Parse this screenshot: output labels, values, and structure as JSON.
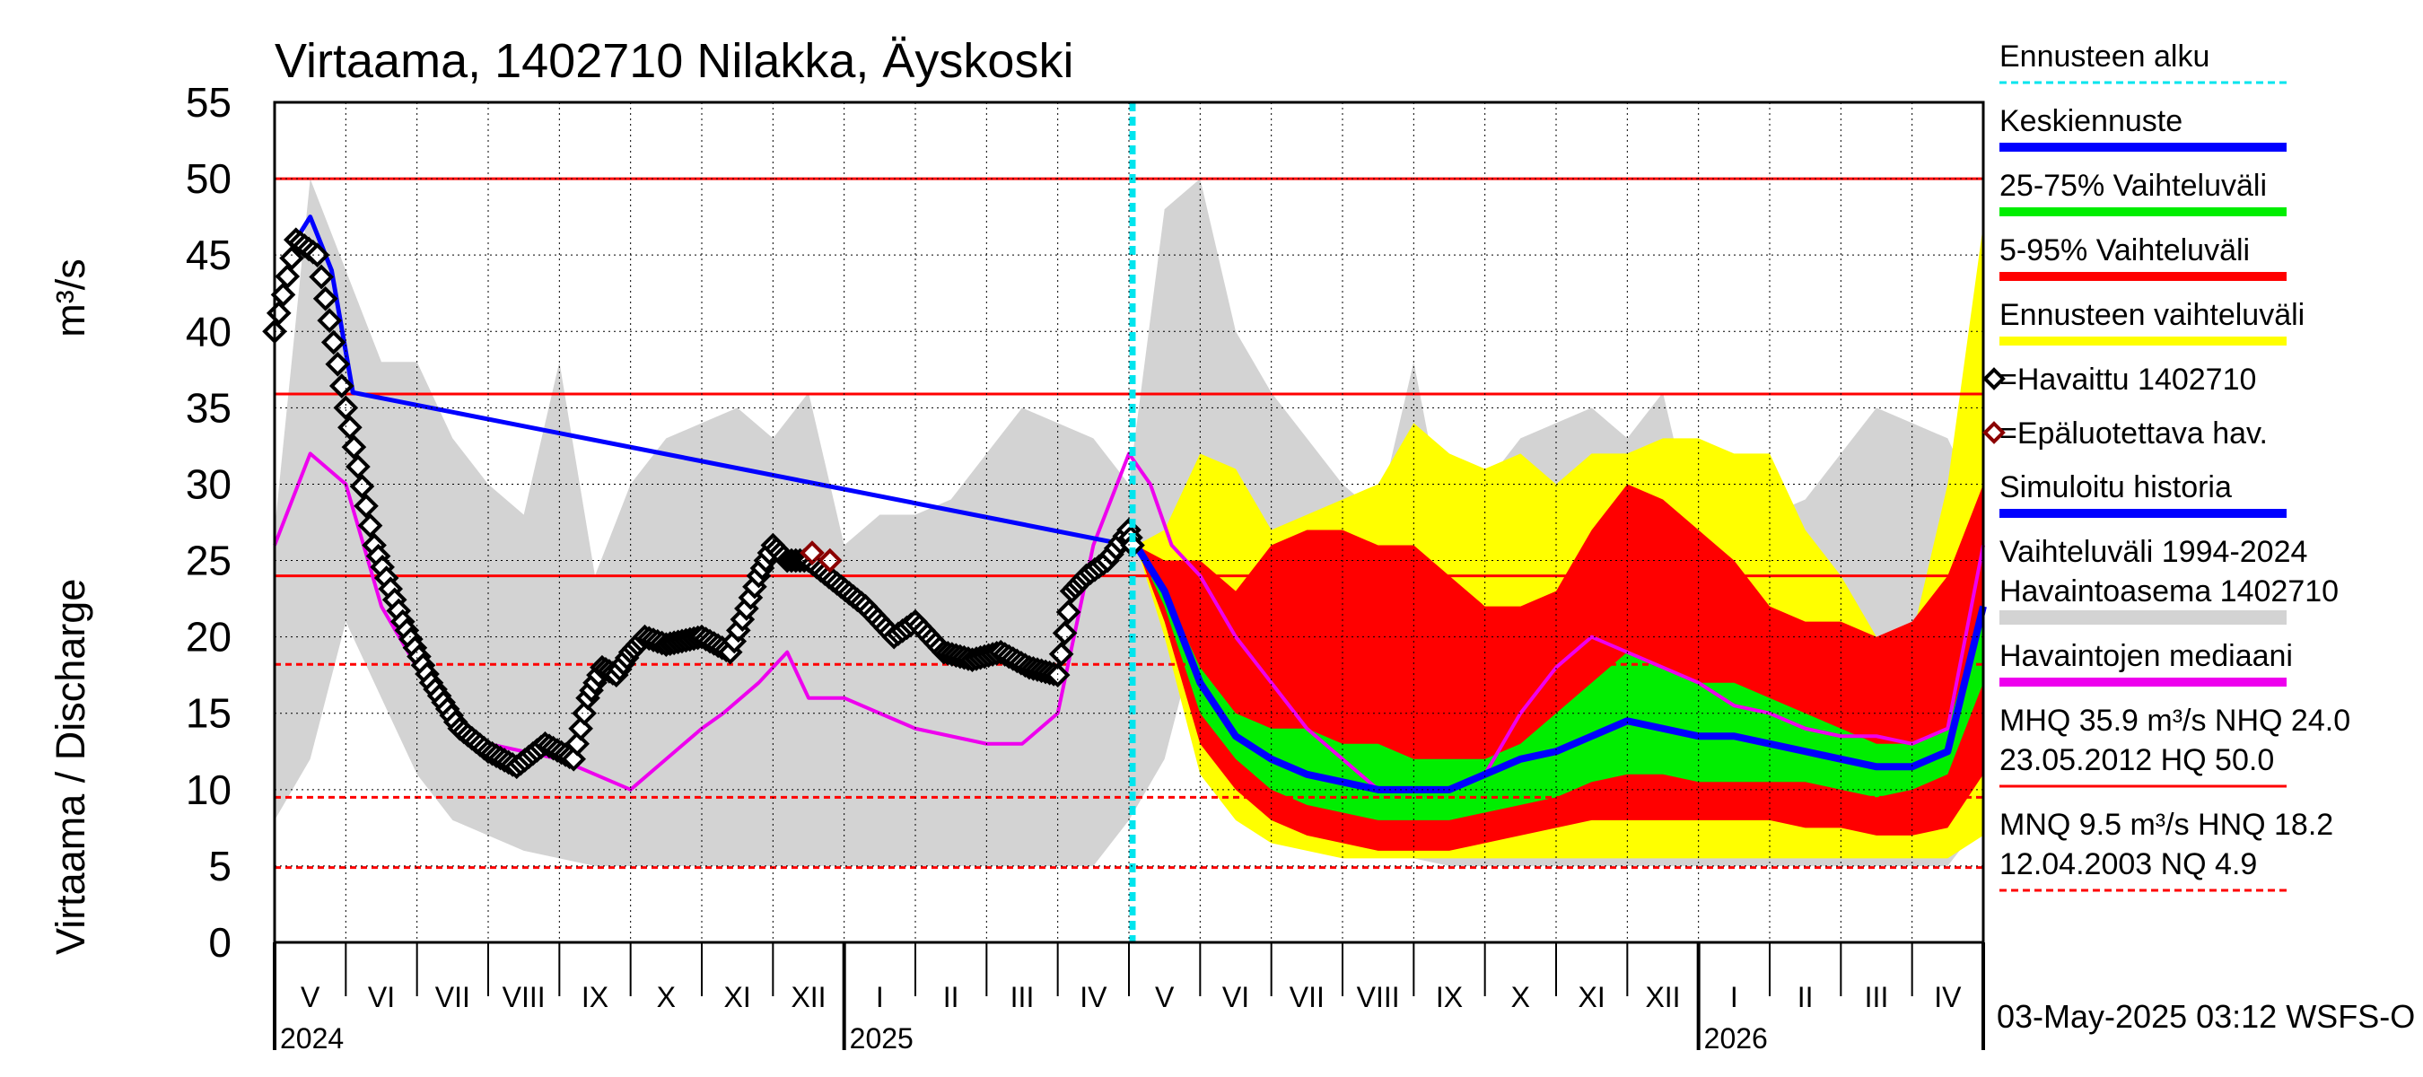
{
  "chart_data": {
    "type": "area",
    "title": "Virtaama, 1402710 Nilakka, Äyskoski",
    "ylabel": "Virtaama / Discharge",
    "yunit": "m³/s",
    "ylim": [
      0,
      55
    ],
    "yticks": [
      0,
      5,
      10,
      15,
      20,
      25,
      30,
      35,
      40,
      45,
      50,
      55
    ],
    "x_months": [
      "V",
      "VI",
      "VII",
      "VIII",
      "IX",
      "X",
      "XI",
      "XII",
      "I",
      "II",
      "III",
      "IV",
      "V",
      "VI",
      "VII",
      "VIII",
      "IX",
      "X",
      "XI",
      "XII",
      "I",
      "II",
      "III",
      "IV"
    ],
    "x_years": [
      "2024",
      "2025",
      "2026"
    ],
    "forecast_start": "2025-05-03",
    "reference_lines": [
      {
        "label": "HQ",
        "value": 50.0,
        "style": "solid"
      },
      {
        "label": "MHQ",
        "value": 35.9,
        "style": "solid"
      },
      {
        "label": "NHQ",
        "value": 24.0,
        "style": "solid"
      },
      {
        "label": "HNQ",
        "value": 18.2,
        "style": "dashed"
      },
      {
        "label": "MNQ",
        "value": 9.5,
        "style": "dashed"
      },
      {
        "label": "NQ",
        "value": 4.9,
        "style": "dashed"
      }
    ],
    "historical_range": {
      "months": [
        0,
        0.5,
        1,
        1.5,
        2,
        2.5,
        3,
        3.5,
        4,
        4.5,
        5,
        5.5,
        6,
        6.5,
        7,
        7.5,
        8,
        8.5,
        9,
        9.5,
        10,
        10.5,
        11,
        11.5,
        12,
        12.5,
        13,
        13.5,
        14,
        14.5,
        15,
        15.5,
        16,
        16.5,
        17,
        17.5,
        18,
        18.5,
        19,
        19.5,
        20,
        20.5,
        21,
        21.5,
        22,
        22.5,
        23,
        23.5,
        24
      ],
      "max": [
        27,
        50,
        44,
        38,
        38,
        33,
        30,
        28,
        38,
        24,
        30,
        33,
        34,
        35,
        33,
        36,
        26,
        28,
        28,
        29,
        32,
        35,
        34,
        33,
        30,
        48,
        50,
        40,
        36,
        33,
        30,
        28,
        38,
        26,
        30,
        33,
        34,
        35,
        33,
        36,
        26,
        28,
        28,
        29,
        32,
        35,
        34,
        33,
        28
      ],
      "min": [
        8,
        12,
        21,
        16,
        11,
        8,
        7,
        6,
        5.5,
        5,
        5,
        5,
        5,
        5,
        5,
        5,
        5,
        5,
        5,
        5,
        5,
        5,
        5,
        5,
        8,
        12,
        21,
        16,
        11,
        8,
        7,
        6,
        5.5,
        5,
        5,
        5,
        5,
        5,
        5,
        5,
        5,
        5,
        5,
        5,
        5,
        5,
        5,
        5,
        8
      ]
    },
    "forecast_range": {
      "months": [
        12.1,
        12.5,
        13,
        13.5,
        14,
        14.5,
        15,
        15.5,
        16,
        16.5,
        17,
        17.5,
        18,
        18.5,
        19,
        19.5,
        20,
        20.5,
        21,
        21.5,
        22,
        22.5,
        23,
        23.5,
        24
      ],
      "ensemble_max": [
        26,
        27,
        32,
        31,
        27,
        28,
        29,
        30,
        34,
        32,
        31,
        32,
        30,
        32,
        32,
        33,
        33,
        32,
        32,
        27,
        24,
        20,
        20,
        30,
        47
      ],
      "q95": [
        26,
        25,
        25,
        23,
        26,
        27,
        27,
        26,
        26,
        24,
        22,
        22,
        23,
        27,
        30,
        29,
        27,
        25,
        22,
        21,
        21,
        20,
        21,
        24,
        30
      ],
      "q75": [
        26,
        23,
        18,
        15,
        14,
        14,
        13,
        13,
        12,
        12,
        12,
        13,
        15,
        17,
        19,
        18,
        17,
        17,
        16,
        15,
        14,
        13,
        13,
        14,
        22
      ],
      "median": [
        26,
        23,
        17,
        13.5,
        12,
        11,
        10.5,
        10,
        10,
        10,
        11,
        12,
        12.5,
        13.5,
        14.5,
        14,
        13.5,
        13.5,
        13,
        12.5,
        12,
        11.5,
        11.5,
        12.5,
        22
      ],
      "q25": [
        26,
        22,
        15,
        12,
        10,
        9,
        8.5,
        8,
        8,
        8,
        8.5,
        9,
        9.5,
        10.5,
        11,
        11,
        10.5,
        10.5,
        10.5,
        10.5,
        10,
        9.5,
        10,
        11,
        17
      ],
      "q5": [
        26,
        21,
        13,
        10,
        8,
        7,
        6.5,
        6,
        6,
        6,
        6.5,
        7,
        7.5,
        8,
        8,
        8,
        8,
        8,
        8,
        7.5,
        7.5,
        7,
        7,
        7.5,
        11
      ],
      "ensemble_min": [
        26,
        20,
        11,
        8,
        6.5,
        6,
        5.5,
        5.5,
        5.5,
        5.5,
        5.5,
        5.5,
        5.5,
        5.5,
        5.5,
        5.5,
        5.5,
        5.5,
        5.5,
        5.5,
        5.5,
        5.5,
        5.5,
        5.5,
        7
      ]
    },
    "observed": {
      "months": [
        0,
        0.3,
        0.6,
        1.0,
        1.4,
        1.8,
        2.2,
        2.6,
        3.0,
        3.4,
        3.8,
        4.2,
        4.4,
        4.6,
        4.8,
        5.0,
        5.2,
        5.5,
        6.0,
        6.4,
        6.8,
        7.0,
        7.2,
        7.5,
        7.9,
        8.3,
        8.7,
        9.0,
        9.4,
        9.8,
        10.2,
        10.6,
        11.0,
        11.2,
        11.4,
        11.7,
        12.0,
        12.05
      ],
      "values": [
        40,
        46,
        45,
        35,
        26,
        21,
        17,
        14,
        12.5,
        11.5,
        13,
        12,
        16,
        18,
        17.5,
        19,
        20,
        19.5,
        20,
        19,
        24,
        26,
        25,
        25,
        23.5,
        22,
        20,
        21,
        19,
        18.5,
        19,
        18,
        17.5,
        23,
        24,
        25,
        27,
        26
      ]
    },
    "unreliable_observed": [
      {
        "month": 7.55,
        "value": 25.5
      },
      {
        "month": 7.8,
        "value": 25
      }
    ],
    "simulated_history": {
      "months": [
        0,
        0.3,
        0.5,
        0.8,
        1.1,
        12.0
      ],
      "values": [
        40,
        46,
        47.5,
        44,
        36,
        26
      ]
    },
    "median_history": {
      "months": [
        0,
        0.5,
        1.0,
        1.5,
        2.0,
        2.5,
        3.0,
        3.5,
        4.0,
        4.5,
        5.0,
        5.5,
        6.0,
        6.3,
        6.8,
        7.2,
        7.5,
        8.0,
        8.5,
        9.0,
        9.5,
        10.0,
        10.5,
        11.0,
        11.5,
        12.0,
        12.3,
        12.6,
        13.0,
        13.5,
        14.0,
        14.5,
        15.0,
        15.5,
        16.0,
        16.5,
        17.0,
        17.5,
        18.0,
        18.5,
        19.0,
        19.5,
        20.0,
        20.5,
        21.0,
        21.5,
        22.0,
        22.5,
        23.0,
        23.5,
        24.0
      ],
      "values": [
        26,
        32,
        30,
        22,
        18,
        15,
        13,
        12.5,
        12,
        11,
        10,
        12,
        14,
        15,
        17,
        19,
        16,
        16,
        15,
        14,
        13.5,
        13,
        13,
        15,
        26,
        32,
        30,
        26,
        24,
        20,
        17,
        14,
        12,
        10,
        10,
        10,
        11,
        15,
        18,
        20,
        19,
        18,
        17,
        15.5,
        15,
        14,
        13.5,
        13.5,
        13,
        14,
        26
      ]
    },
    "legend": [
      {
        "label": "Ennusteen alku",
        "color": "#00e5ee",
        "kind": "dashed"
      },
      {
        "label": "Keskiennuste",
        "color": "#0000ff",
        "kind": "line"
      },
      {
        "label": "25-75% Vaihteluväli",
        "color": "#00ee00",
        "kind": "line"
      },
      {
        "label": "5-95% Vaihteluväli",
        "color": "#ff0000",
        "kind": "line"
      },
      {
        "label": "Ennusteen vaihteluväli",
        "color": "#ffff00",
        "kind": "line"
      },
      {
        "label": "=Havaittu 1402710",
        "color": "#000000",
        "kind": "diamond"
      },
      {
        "label": "=Epäluotettava hav.",
        "color": "#8b0000",
        "kind": "diamond"
      },
      {
        "label": "Simuloitu historia",
        "color": "#0000ff",
        "kind": "line"
      },
      {
        "label": "Vaihteluväli 1994-2024\n Havaintoasema 1402710",
        "color": "#d3d3d3",
        "kind": "line"
      },
      {
        "label": "Havaintojen mediaani",
        "color": "#ee00ee",
        "kind": "line"
      },
      {
        "label": "MHQ  35.9 m³/s NHQ 24.0\n23.05.2012 HQ 50.0",
        "color": "#ff0000",
        "kind": "line"
      },
      {
        "label": "MNQ  9.5 m³/s HNQ 18.2\n12.04.2003 NQ  4.9",
        "color": "#ff0000",
        "kind": "dashed"
      }
    ],
    "footer": "03-May-2025 03:12 WSFS-O",
    "colors": {
      "historical_range": "#d3d3d3",
      "ensemble_range": "#ffff00",
      "q5_95": "#ff0000",
      "q25_75": "#00ee00",
      "median_forecast": "#0000ff",
      "observed": "#000000",
      "unreliable": "#8b0000",
      "median_history": "#ee00ee",
      "reference": "#ff0000",
      "forecast_start": "#00e5ee"
    }
  }
}
